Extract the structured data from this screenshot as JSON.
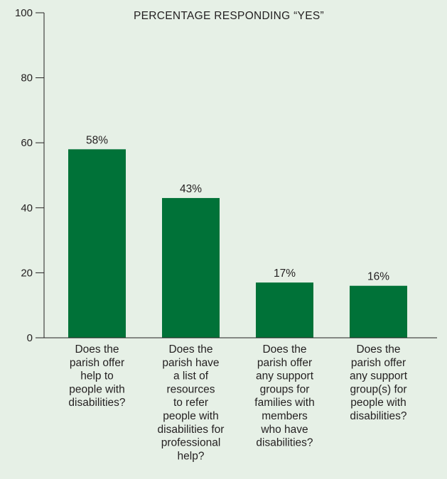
{
  "chart_data": {
    "type": "bar",
    "title": "PERCENTAGE RESPONDING “YES”",
    "xlabel": "",
    "ylabel": "",
    "ylim": [
      0,
      100
    ],
    "yticks": [
      "0",
      "20",
      "40",
      "60",
      "80",
      "100"
    ],
    "categories": [
      [
        "Does the",
        "parish offer",
        "help to",
        "people with",
        "disabilities?"
      ],
      [
        "Does the",
        "parish have",
        "a list of",
        "resources",
        "to refer",
        "people with",
        "disabilities for",
        "professional",
        "help?"
      ],
      [
        "Does the",
        "parish offer",
        "any support",
        "groups for",
        "families with",
        "members",
        "who have",
        "disabilities?"
      ],
      [
        "Does the",
        "parish offer",
        "any support",
        "group(s) for",
        "people with",
        "disabilities?"
      ]
    ],
    "values": [
      58,
      43,
      17,
      16
    ],
    "data_labels": [
      "58%",
      "43%",
      "17%",
      "16%"
    ],
    "bar_color": "#007238",
    "grid": false
  }
}
